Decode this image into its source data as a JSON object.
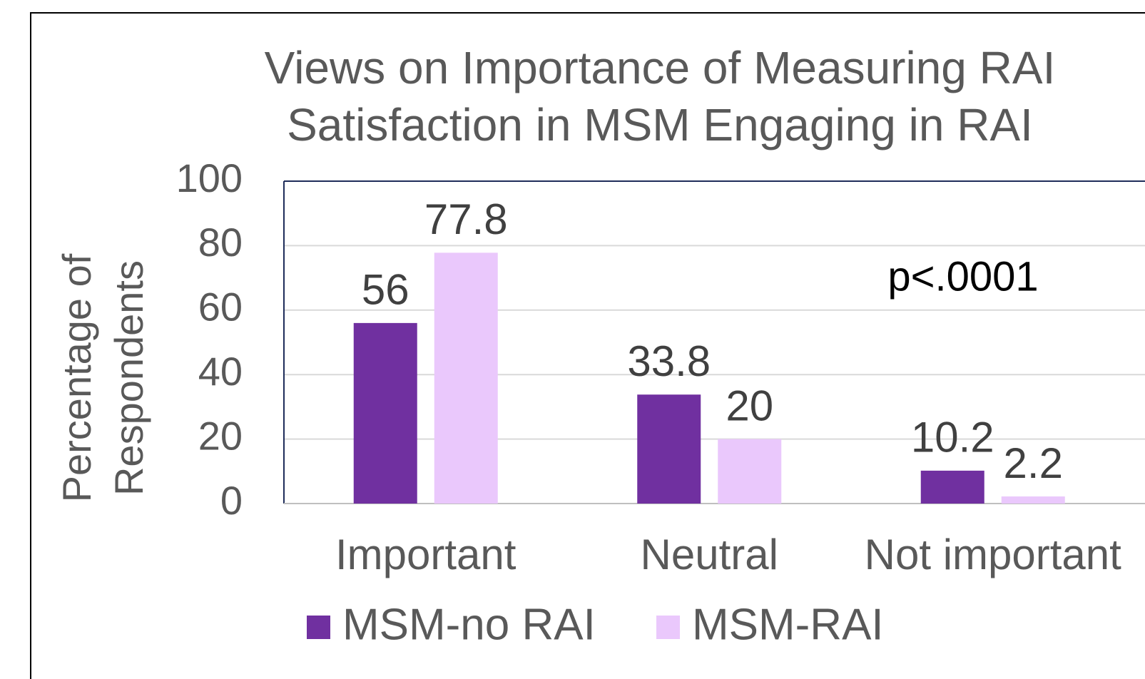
{
  "chart_data": {
    "type": "bar",
    "title": "Views on Importance of Measuring RAI Satisfaction in MSM Engaging in RAI",
    "y_label": "Percentage of Respondents",
    "categories": [
      "Important",
      "Neutral",
      "Not important"
    ],
    "series": [
      {
        "name": "MSM-no RAI",
        "color": "#7030a0",
        "values": [
          56,
          33.8,
          10.2
        ]
      },
      {
        "name": "MSM-RAI",
        "color": "#eac8fc",
        "values": [
          77.8,
          20,
          2.2
        ]
      }
    ],
    "ylim": [
      0,
      100
    ],
    "yticks": [
      0,
      20,
      40,
      60,
      80,
      100
    ],
    "grid": true,
    "annotation": "p<.0001",
    "legend": "bottom"
  }
}
